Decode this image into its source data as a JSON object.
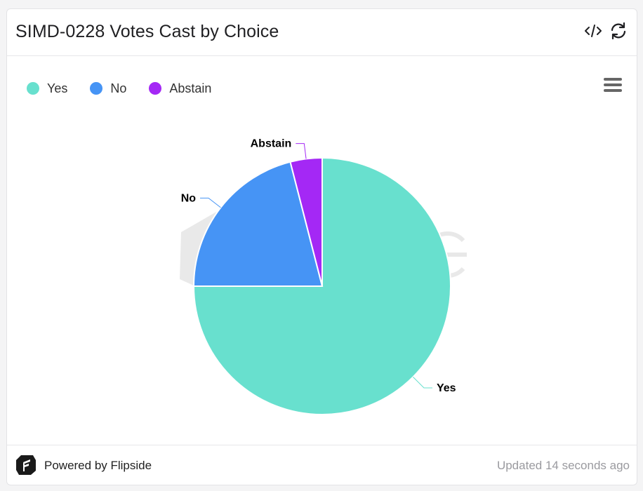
{
  "card": {
    "title": "SIMD-0228 Votes Cast by Choice"
  },
  "icons": {
    "code": "code-icon",
    "refresh": "refresh-icon",
    "menu": "hamburger-menu-icon",
    "logo": "flipside-logo-icon"
  },
  "chart_data": {
    "type": "pie",
    "categories": [
      "Yes",
      "No",
      "Abstain"
    ],
    "values": [
      75,
      21,
      4
    ],
    "colors": [
      "#68e0ce",
      "#4694f5",
      "#a428f5"
    ],
    "legend_position": "top-left",
    "title": ""
  },
  "footer": {
    "powered_by": "Powered by Flipside",
    "updated": "Updated 14 seconds ago"
  }
}
